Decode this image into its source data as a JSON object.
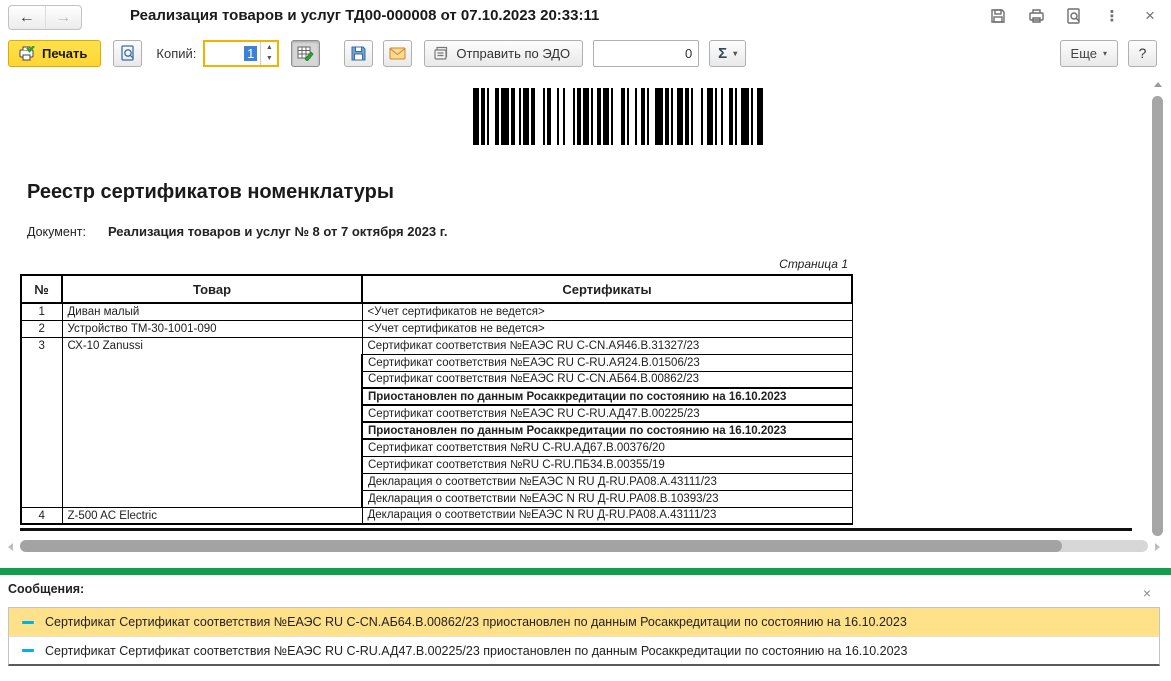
{
  "window": {
    "title": "Реализация товаров и услуг ТД00-000008 от 07.10.2023 20:33:11"
  },
  "icons": {
    "back_arrow": "←",
    "forward_arrow": "→",
    "more_vert": "⋮",
    "close": "×",
    "caret_down": "▾",
    "spin_up": "▲",
    "spin_down": "▼"
  },
  "toolbar": {
    "print_label": "Печать",
    "copies_label": "Копий:",
    "copies_value": "1",
    "edo_label": "Отправить по ЭДО",
    "sum_value": "0",
    "sigma_label": "Σ",
    "more_label": "Еще",
    "help_label": "?"
  },
  "document": {
    "title": "Реестр сертификатов номенклатуры",
    "doc_label": "Документ:",
    "doc_value": "Реализация товаров и услуг № 8 от 7 октября 2023 г.",
    "page_label": "Страница 1",
    "table": {
      "headers": [
        "№",
        "Товар",
        "Сертификаты"
      ],
      "rows": [
        {
          "num": "1",
          "product": "Диван малый",
          "certs": [
            {
              "text": "<Учет сертификатов не ведется>",
              "bold": false
            }
          ]
        },
        {
          "num": "2",
          "product": "Устройство ТМ-30-1001-090",
          "certs": [
            {
              "text": "<Учет сертификатов не ведется>",
              "bold": false
            }
          ]
        },
        {
          "num": "3",
          "product": "СХ-10 Zanussi",
          "certs": [
            {
              "text": "Сертификат соответствия №ЕАЭС RU C-CN.АЯ46.В.31327/23",
              "bold": false
            },
            {
              "text": "Сертификат соответствия №ЕАЭС RU C-RU.АЯ24.В.01506/23",
              "bold": false
            },
            {
              "text": "Сертификат соответствия №ЕАЭС RU C-CN.АБ64.В.00862/23",
              "bold": false
            },
            {
              "text": "Приостановлен по данным Росаккредитации по состоянию на 16.10.2023",
              "bold": true
            },
            {
              "text": "Сертификат соответствия №ЕАЭС RU C-RU.АД47.В.00225/23",
              "bold": false
            },
            {
              "text": "Приостановлен по данным Росаккредитации по состоянию на 16.10.2023",
              "bold": true
            },
            {
              "text": "Сертификат соответствия №RU C-RU.АД67.В.00376/20",
              "bold": false
            },
            {
              "text": "Сертификат соответствия №RU C-RU.ПБ34.В.00355/19",
              "bold": false
            },
            {
              "text": "Декларация о соответствии №ЕАЭС N RU Д-RU.РА08.А.43111/23",
              "bold": false
            },
            {
              "text": "Декларация о соответствии №ЕАЭС N RU Д-RU.РА08.В.10393/23",
              "bold": false
            }
          ]
        },
        {
          "num": "4",
          "product": "Z-500 AC Electric",
          "certs": [
            {
              "text": "Декларация о соответствии №ЕАЭС N RU Д-RU.РА08.А.43111/23",
              "bold": false
            }
          ]
        }
      ]
    }
  },
  "messages": {
    "label": "Сообщения:",
    "items": [
      {
        "text": "Сертификат Сертификат соответствия №ЕАЭС RU C-CN.АБ64.В.00862/23 приостановлен по данным Росаккредитации по состоянию на 16.10.2023",
        "highlighted": true
      },
      {
        "text": "Сертификат Сертификат соответствия №ЕАЭС RU C-RU.АД47.В.00225/23 приостановлен по данным Росаккредитации по состоянию на 16.10.2023",
        "highlighted": false
      }
    ]
  },
  "colors": {
    "accent_yellow": "#ffd633",
    "green_bar": "#0f9d4f",
    "message_highlight": "#ffe18a",
    "selection_blue": "#3d82d6",
    "focus_border": "#f0b400",
    "message_dash": "#00b3e3"
  }
}
